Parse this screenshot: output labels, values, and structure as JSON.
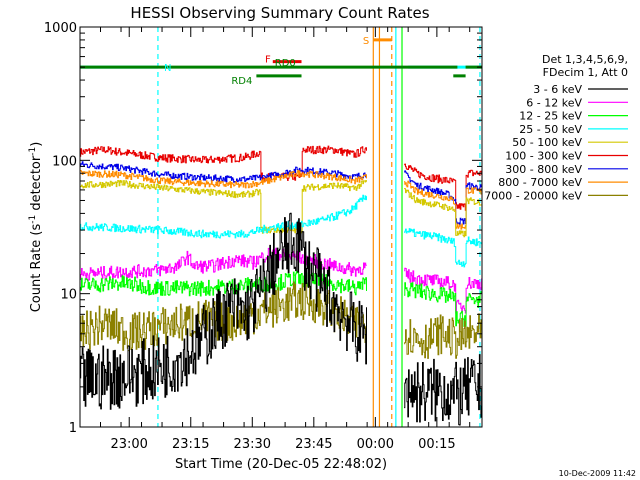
{
  "chart_data": {
    "type": "line",
    "title": "HESSI Observing Summary Count Rates",
    "ylabel_main": "Count Rate (s",
    "ylabel_sup": "-1",
    "ylabel_mid": " detector",
    "ylabel_sup2": "-1",
    "ylabel_end": ")",
    "xlabel": "Start Time (20-Dec-05 22:48:02)",
    "y_scale": "log",
    "ylim": [
      1,
      1000
    ],
    "y_ticks": [
      {
        "value": 1,
        "label": "1"
      },
      {
        "value": 10,
        "label": "10"
      },
      {
        "value": 100,
        "label": "100"
      },
      {
        "value": 1000,
        "label": "1000"
      }
    ],
    "xlim_min": [
      0,
      98
    ],
    "x_ticks": [
      {
        "value": 12,
        "label": "23:00"
      },
      {
        "value": 27,
        "label": "23:15"
      },
      {
        "value": 42,
        "label": "23:30"
      },
      {
        "value": 57,
        "label": "23:45"
      },
      {
        "value": 72,
        "label": "00:00"
      },
      {
        "value": 87,
        "label": "00:15"
      }
    ],
    "legend": {
      "placement": "right",
      "header": [
        "Det 1,3,4,5,6,9,",
        "FDecim 1, Att 0"
      ],
      "entries": [
        {
          "label": "3 - 6 keV",
          "color": "#000000"
        },
        {
          "label": "6 - 12 keV",
          "color": "#ff00ff"
        },
        {
          "label": "12 - 25 keV",
          "color": "#00ff00"
        },
        {
          "label": "25 - 50 keV",
          "color": "#00ffff"
        },
        {
          "label": "50 - 100 keV",
          "color": "#d4c800"
        },
        {
          "label": "100 - 300 keV",
          "color": "#e80000"
        },
        {
          "label": "300 - 800 keV",
          "color": "#0000e8"
        },
        {
          "label": "800 - 7000 keV",
          "color": "#ff8c00"
        },
        {
          "label": "7000 - 20000 keV",
          "color": "#8b8000"
        }
      ]
    },
    "flags": [
      {
        "label": "N",
        "color": "#00ffff",
        "level": 500,
        "segments": [
          [
            0,
            19
          ],
          [
            80,
            98
          ]
        ]
      },
      {
        "label": "S",
        "color": "#ff8c00",
        "level": 800,
        "segments": [
          [
            71.5,
            76
          ]
        ]
      },
      {
        "label": "F",
        "color": "#e80000",
        "level": 550,
        "segments": [
          [
            47,
            54
          ]
        ]
      },
      {
        "label": "RD0",
        "color": "#008000",
        "level": 500,
        "segments": [
          [
            0,
            92
          ],
          [
            94,
            98
          ]
        ]
      },
      {
        "label": "RD4",
        "color": "#008000",
        "level": 430,
        "segments": [
          [
            43,
            54
          ],
          [
            91,
            94
          ]
        ]
      }
    ],
    "vlines": [
      {
        "x": 19,
        "color": "#00ffff",
        "dashed": true
      },
      {
        "x": 97.5,
        "color": "#00ffff",
        "dashed": true
      },
      {
        "x": 71.5,
        "color": "#ff8c00",
        "dashed": false
      },
      {
        "x": 73,
        "color": "#ff8c00",
        "dashed": false
      },
      {
        "x": 76,
        "color": "#ff8c00",
        "dashed": true
      },
      {
        "x": 77,
        "color": "#00ffff",
        "dashed": false
      },
      {
        "x": 78.5,
        "color": "#00ff00",
        "dashed": false
      }
    ],
    "series": [
      {
        "color": "#e80000",
        "noise": 0.03,
        "segments": [
          {
            "x": [
              0,
              6,
              10,
              19,
              30,
              40,
              44,
              44.1,
              54,
              54.1,
              62,
              67,
              70
            ],
            "y": [
              115,
              120,
              115,
              105,
              100,
              105,
              115,
              75,
              75,
              120,
              120,
              110,
              125
            ]
          },
          {
            "x": [
              79,
              82,
              85,
              88,
              90,
              91.5,
              91.6,
              94,
              94.1,
              98
            ],
            "y": [
              95,
              80,
              75,
              72,
              70,
              68,
              45,
              45,
              80,
              80
            ]
          }
        ]
      },
      {
        "color": "#0000e8",
        "noise": 0.025,
        "segments": [
          {
            "x": [
              0,
              10,
              20,
              30,
              40,
              44,
              48,
              53,
              54,
              62,
              67,
              70
            ],
            "y": [
              93,
              88,
              78,
              74,
              72,
              74,
              78,
              85,
              85,
              80,
              75,
              80
            ]
          },
          {
            "x": [
              79,
              82,
              86,
              90,
              91.5,
              91.6,
              94,
              94.1,
              98
            ],
            "y": [
              80,
              65,
              60,
              55,
              50,
              35,
              35,
              65,
              62
            ]
          }
        ]
      },
      {
        "color": "#ff8c00",
        "noise": 0.025,
        "segments": [
          {
            "x": [
              0,
              10,
              20,
              30,
              40,
              44,
              48,
              53,
              54,
              62,
              67,
              70
            ],
            "y": [
              80,
              78,
              70,
              67,
              65,
              68,
              73,
              80,
              80,
              75,
              70,
              75
            ]
          },
          {
            "x": [
              79,
              82,
              86,
              90,
              91.5,
              91.6,
              94,
              94.1,
              98
            ],
            "y": [
              70,
              58,
              55,
              52,
              48,
              32,
              32,
              60,
              58
            ]
          }
        ]
      },
      {
        "color": "#d4c800",
        "noise": 0.025,
        "segments": [
          {
            "x": [
              0,
              10,
              20,
              30,
              40,
              44,
              44.1,
              54,
              54.1,
              62,
              67,
              70
            ],
            "y": [
              65,
              67,
              62,
              58,
              55,
              58,
              30,
              30,
              62,
              65,
              62,
              70
            ]
          },
          {
            "x": [
              79,
              82,
              86,
              90,
              91.5,
              91.6,
              94,
              94.1,
              98
            ],
            "y": [
              60,
              50,
              47,
              44,
              42,
              28,
              28,
              50,
              48
            ]
          }
        ]
      },
      {
        "color": "#00ffff",
        "noise": 0.03,
        "segments": [
          {
            "x": [
              0,
              10,
              19,
              30,
              40,
              44,
              48,
              54,
              60,
              66,
              70
            ],
            "y": [
              32,
              31,
              30,
              28,
              28,
              30,
              32,
              33,
              36,
              42,
              55
            ]
          },
          {
            "x": [
              79,
              82,
              86,
              90,
              91.5,
              91.6,
              94,
              94.1,
              98
            ],
            "y": [
              30,
              28,
              27,
              25,
              24,
              17,
              17,
              25,
              24
            ]
          }
        ]
      },
      {
        "color": "#ff00ff",
        "noise": 0.05,
        "segments": [
          {
            "x": [
              0,
              10,
              19,
              24,
              26,
              28,
              32,
              38,
              42,
              46,
              52,
              56,
              62,
              67,
              70
            ],
            "y": [
              14,
              14.5,
              15,
              16,
              19,
              16,
              16,
              18,
              17,
              20,
              19,
              18,
              16,
              15,
              16
            ]
          },
          {
            "x": [
              79,
              82,
              86,
              90,
              91.5,
              91.6,
              94,
              94.1,
              98
            ],
            "y": [
              14,
              13,
              12.5,
              12,
              11.5,
              8,
              8,
              12,
              12
            ]
          }
        ]
      },
      {
        "color": "#00ff00",
        "noise": 0.06,
        "segments": [
          {
            "x": [
              0,
              10,
              19,
              30,
              40,
              48,
              52,
              56,
              62,
              67,
              70
            ],
            "y": [
              11.5,
              12,
              11,
              11,
              11.5,
              12,
              13,
              12.5,
              12,
              11,
              12
            ]
          },
          {
            "x": [
              79,
              82,
              86,
              90,
              91.5,
              91.6,
              94,
              94.1,
              98
            ],
            "y": [
              11,
              10.5,
              10,
              9.5,
              9,
              6.5,
              6.5,
              9,
              9
            ]
          }
        ]
      },
      {
        "color": "#8b8000",
        "noise": 0.15,
        "segments": [
          {
            "x": [
              0,
              6,
              12,
              18,
              24,
              30,
              36,
              42,
              48,
              54,
              60,
              66,
              70
            ],
            "y": [
              5,
              6,
              5,
              5.5,
              6,
              6.5,
              6,
              7,
              8,
              9,
              8,
              6,
              6
            ]
          },
          {
            "x": [
              79,
              84,
              88,
              92,
              96,
              98
            ],
            "y": [
              5,
              4.5,
              5,
              4.5,
              5,
              5
            ]
          }
        ]
      },
      {
        "color": "#000000",
        "noise": 0.25,
        "segments": [
          {
            "x": [
              0,
              8,
              16,
              22,
              28,
              33,
              37,
              40,
              44,
              47,
              50,
              53,
              56,
              60,
              64,
              68,
              70
            ],
            "y": [
              2.2,
              2.4,
              2.6,
              3,
              4,
              6,
              8,
              7,
              10,
              16,
              22,
              25,
              15,
              10,
              7,
              5,
              5
            ]
          },
          {
            "x": [
              79,
              84,
              88,
              92,
              96,
              98
            ],
            "y": [
              2,
              1.8,
              1.9,
              1.7,
              2,
              2
            ]
          }
        ]
      }
    ]
  },
  "footer": {
    "timestamp": "10-Dec-2009 11:42"
  }
}
